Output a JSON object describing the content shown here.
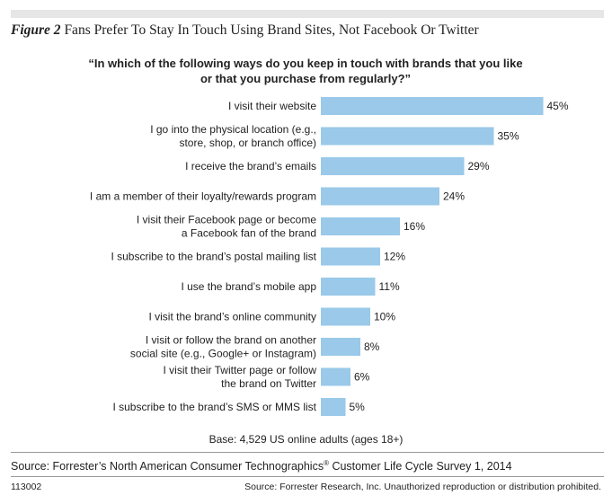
{
  "figure": {
    "label": "Figure 2",
    "title": "Fans Prefer To Stay In Touch Using Brand Sites, Not Facebook Or Twitter"
  },
  "question": {
    "line1": "“In which of the following ways do you keep in touch with brands that you like",
    "line2": "or that you purchase from regularly?”"
  },
  "chart_data": {
    "type": "bar",
    "orientation": "horizontal",
    "title": "“In which of the following ways do you keep in touch with brands that you like or that you purchase from regularly?”",
    "unit": "%",
    "bar_color": "#9ac9e9",
    "categories": [
      [
        "I visit their website"
      ],
      [
        "I go into the physical location (e.g.,",
        "store, shop, or branch office)"
      ],
      [
        "I receive the brand’s emails"
      ],
      [
        "I am a member of their loyalty/rewards program"
      ],
      [
        "I visit their Facebook page or become",
        "a Facebook fan of the brand"
      ],
      [
        "I subscribe to the brand’s postal mailing list"
      ],
      [
        "I use the brand’s mobile app"
      ],
      [
        "I visit the brand’s online community"
      ],
      [
        "I visit or follow the brand on another",
        "social site (e.g., Google+ or Instagram)"
      ],
      [
        "I visit their Twitter page or follow",
        "the brand on Twitter"
      ],
      [
        "I subscribe to the brand’s SMS or MMS list"
      ]
    ],
    "values": [
      45,
      35,
      29,
      24,
      16,
      12,
      11,
      10,
      8,
      6,
      5
    ],
    "value_labels": [
      "45%",
      "35%",
      "29%",
      "24%",
      "16%",
      "12%",
      "11%",
      "10%",
      "8%",
      "6%",
      "5%"
    ]
  },
  "base_note": "Base: 4,529 US online adults (ages 18+)",
  "source": {
    "main": "Source: Forrester’s North American Consumer Technographics",
    "reg_mark": "®",
    "main_suffix": " Customer Life Cycle Survey 1, 2014",
    "figure_id": "113002",
    "copyright": "Source: Forrester Research, Inc. Unauthorized reproduction or distribution prohibited."
  }
}
